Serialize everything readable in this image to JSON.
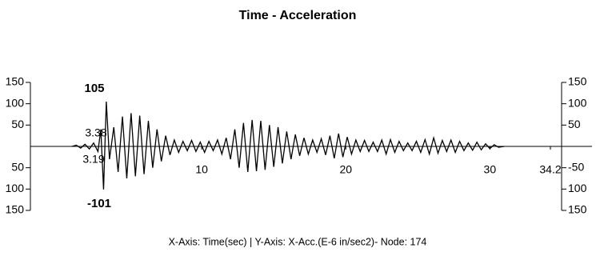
{
  "chart_data": {
    "type": "line",
    "title": "Time - Acceleration",
    "xlabel": "X-Axis: Time(sec) | Y-Axis: X-Acc.(E-6 in/sec2)- Node: 174",
    "annotations": [
      "105",
      "3.38",
      "3.19",
      "-101"
    ],
    "xlim": [
      0,
      34.2
    ],
    "xticks": [
      10,
      20,
      30,
      34.2
    ],
    "ylim": [
      -150,
      150
    ],
    "yticks": [
      {
        "value": 150,
        "label": "150"
      },
      {
        "value": 100,
        "label": "100"
      },
      {
        "value": 50,
        "label": "50"
      },
      {
        "value": -50,
        "label": "50"
      },
      {
        "value": -100,
        "label": "100"
      },
      {
        "value": -150,
        "label": "150"
      }
    ],
    "y2lim": [
      -150,
      150
    ],
    "y2ticks": [
      {
        "value": 150,
        "label": "150"
      },
      {
        "value": 100,
        "label": "100"
      },
      {
        "value": 50,
        "label": "50"
      },
      {
        "value": -50,
        "label": "-50"
      },
      {
        "value": -100,
        "label": "100"
      },
      {
        "value": -150,
        "label": "150"
      }
    ],
    "x": [
      1.0,
      1.3,
      1.6,
      1.9,
      2.2,
      2.5,
      2.8,
      3.0,
      3.19,
      3.38,
      3.6,
      3.9,
      4.2,
      4.5,
      4.8,
      5.1,
      5.4,
      5.7,
      6.0,
      6.3,
      6.6,
      6.9,
      7.2,
      7.5,
      7.8,
      8.1,
      8.4,
      8.7,
      9.0,
      9.3,
      9.6,
      9.9,
      10.2,
      10.5,
      10.8,
      11.1,
      11.4,
      11.7,
      12.0,
      12.3,
      12.6,
      12.9,
      13.2,
      13.5,
      13.8,
      14.1,
      14.4,
      14.7,
      15.0,
      15.3,
      15.6,
      15.9,
      16.2,
      16.5,
      16.8,
      17.1,
      17.4,
      17.7,
      18.0,
      18.3,
      18.6,
      18.9,
      19.2,
      19.5,
      19.8,
      20.1,
      20.4,
      20.7,
      21.0,
      21.3,
      21.6,
      21.9,
      22.2,
      22.5,
      22.8,
      23.1,
      23.4,
      23.7,
      24.0,
      24.3,
      24.6,
      24.9,
      25.2,
      25.5,
      25.8,
      26.1,
      26.4,
      26.7,
      27.0,
      27.3,
      27.6,
      27.9,
      28.2,
      28.5,
      28.8,
      29.1,
      29.4,
      29.7,
      30.0,
      30.3,
      30.6,
      31.0
    ],
    "series": [
      {
        "color": "#000000",
        "values": [
          0,
          3,
          -4,
          5,
          -6,
          8,
          -12,
          40,
          -101,
          105,
          -30,
          45,
          -60,
          70,
          -75,
          78,
          -70,
          72,
          -65,
          60,
          -50,
          40,
          -35,
          25,
          -20,
          15,
          -14,
          12,
          -10,
          14,
          -12,
          10,
          -14,
          12,
          -10,
          15,
          -18,
          20,
          -30,
          40,
          -50,
          55,
          -60,
          62,
          -58,
          60,
          -55,
          50,
          -48,
          45,
          -40,
          35,
          -30,
          28,
          -22,
          20,
          -18,
          15,
          -14,
          18,
          -20,
          25,
          -28,
          30,
          -25,
          22,
          -18,
          15,
          -12,
          14,
          -12,
          10,
          -12,
          15,
          -18,
          16,
          -14,
          12,
          -10,
          8,
          -10,
          12,
          -14,
          16,
          -18,
          20,
          -16,
          14,
          -12,
          15,
          -14,
          12,
          -10,
          8,
          -9,
          10,
          -8,
          6,
          -5,
          4,
          -2,
          0
        ]
      }
    ]
  }
}
